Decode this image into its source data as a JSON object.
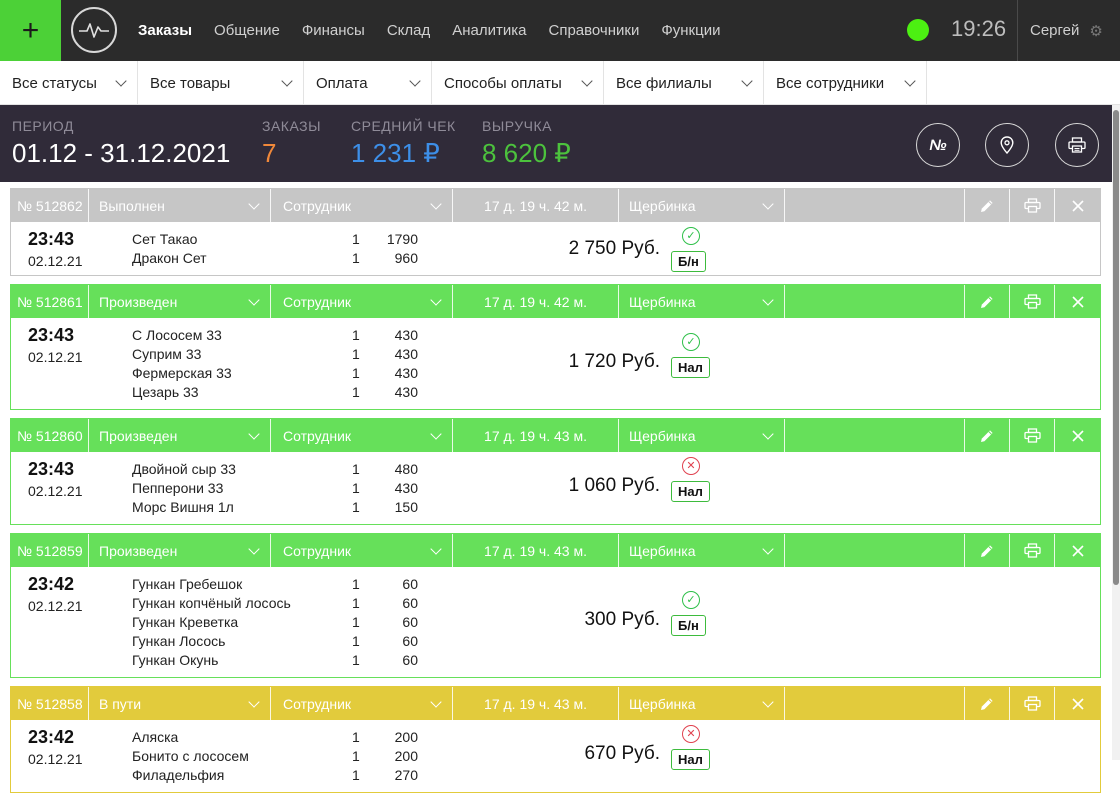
{
  "topbar": {
    "nav": [
      "Заказы",
      "Общение",
      "Финансы",
      "Склад",
      "Аналитика",
      "Справочники",
      "Функции"
    ],
    "active_index": 0,
    "clock": "19:26",
    "user": "Сергей",
    "status_color": "#4cf012"
  },
  "filters": [
    {
      "label": "Все статусы",
      "width": 138
    },
    {
      "label": "Все товары",
      "width": 166
    },
    {
      "label": "Оплата",
      "width": 128
    },
    {
      "label": "Способы оплаты",
      "width": 172
    },
    {
      "label": "Все филиалы",
      "width": 160
    },
    {
      "label": "Все сотрудники",
      "width": 163
    }
  ],
  "summary": {
    "period_label": "ПЕРИОД",
    "period_value": "01.12 - 31.12.2021",
    "orders_label": "ЗАКАЗЫ",
    "orders_value": "7",
    "avg_label": "СРЕДНИЙ ЧЕК",
    "avg_value": "1 231 ₽",
    "revenue_label": "ВЫРУЧКА",
    "revenue_value": "8 620 ₽",
    "colors": {
      "orders": "#f0883a",
      "avg": "#3d8fe8",
      "revenue": "#4cc23d"
    }
  },
  "status_colors": {
    "Выполнен": "#c6c6c6",
    "Произведен": "#66e05a",
    "В пути": "#e2cb3c"
  },
  "orders": [
    {
      "number": "№ 512862",
      "status": "Выполнен",
      "employee": "Сотрудник",
      "duration": "17 д. 19 ч. 42 м.",
      "branch": "Щербинка",
      "time": "23:43",
      "date": "02.12.21",
      "items": [
        [
          "Сет Такао",
          "1",
          "1790"
        ],
        [
          "Дракон Сет",
          "1",
          "960"
        ]
      ],
      "total": "2 750 Руб.",
      "paid": true,
      "payment": "Б/н"
    },
    {
      "number": "№ 512861",
      "status": "Произведен",
      "employee": "Сотрудник",
      "duration": "17 д. 19 ч. 42 м.",
      "branch": "Щербинка",
      "time": "23:43",
      "date": "02.12.21",
      "items": [
        [
          "С Лососем 33",
          "1",
          "430"
        ],
        [
          "Суприм 33",
          "1",
          "430"
        ],
        [
          "Фермерская 33",
          "1",
          "430"
        ],
        [
          "Цезарь 33",
          "1",
          "430"
        ]
      ],
      "total": "1 720 Руб.",
      "paid": true,
      "payment": "Нал"
    },
    {
      "number": "№ 512860",
      "status": "Произведен",
      "employee": "Сотрудник",
      "duration": "17 д. 19 ч. 43 м.",
      "branch": "Щербинка",
      "time": "23:43",
      "date": "02.12.21",
      "items": [
        [
          "Двойной сыр 33",
          "1",
          "480"
        ],
        [
          "Пепперони 33",
          "1",
          "430"
        ],
        [
          "Морс Вишня 1л",
          "1",
          "150"
        ]
      ],
      "total": "1 060 Руб.",
      "paid": false,
      "payment": "Нал"
    },
    {
      "number": "№ 512859",
      "status": "Произведен",
      "employee": "Сотрудник",
      "duration": "17 д. 19 ч. 43 м.",
      "branch": "Щербинка",
      "time": "23:42",
      "date": "02.12.21",
      "items": [
        [
          "Гункан Гребешок",
          "1",
          "60"
        ],
        [
          "Гункан копчёный лосось",
          "1",
          "60"
        ],
        [
          "Гункан Креветка",
          "1",
          "60"
        ],
        [
          "Гункан Лосось",
          "1",
          "60"
        ],
        [
          "Гункан Окунь",
          "1",
          "60"
        ]
      ],
      "total": "300 Руб.",
      "paid": true,
      "payment": "Б/н"
    },
    {
      "number": "№ 512858",
      "status": "В пути",
      "employee": "Сотрудник",
      "duration": "17 д. 19 ч. 43 м.",
      "branch": "Щербинка",
      "time": "23:42",
      "date": "02.12.21",
      "items": [
        [
          "Аляска",
          "1",
          "200"
        ],
        [
          "Бонито с лососем",
          "1",
          "200"
        ],
        [
          "Филадельфия",
          "1",
          "270"
        ]
      ],
      "total": "670 Руб.",
      "paid": false,
      "payment": "Нал"
    }
  ]
}
